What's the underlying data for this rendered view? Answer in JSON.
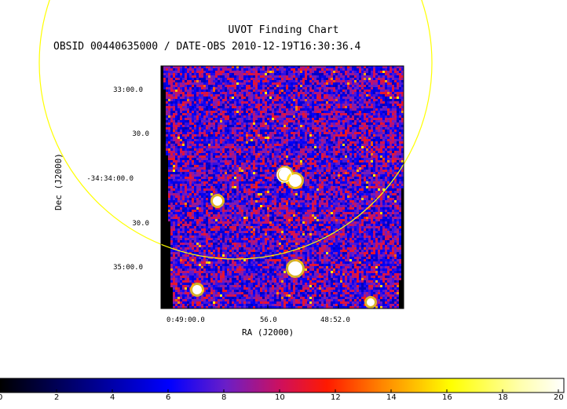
{
  "title": "UVOT Finding Chart",
  "subtitle": "OBSID 00440635000 / DATE-OBS 2010-12-19T16:30:36.4",
  "chart_data": {
    "type": "heatmap",
    "xlabel": "RA (J2000)",
    "ylabel": "Dec (J2000)",
    "xticks": [
      "0:49:00.0",
      "56.0",
      "48:52.0"
    ],
    "yticks": [
      "33:00.0",
      "30.0",
      "-34:34:00.0",
      "30.0",
      "35:00.0"
    ],
    "colorbar": {
      "range": [
        0,
        20
      ],
      "ticks": [
        "0",
        "2",
        "4",
        "6",
        "8",
        "10",
        "12",
        "14",
        "16",
        "18",
        "20"
      ]
    },
    "colors": {
      "circle": "#ffff00",
      "border": "#0000cc"
    }
  }
}
